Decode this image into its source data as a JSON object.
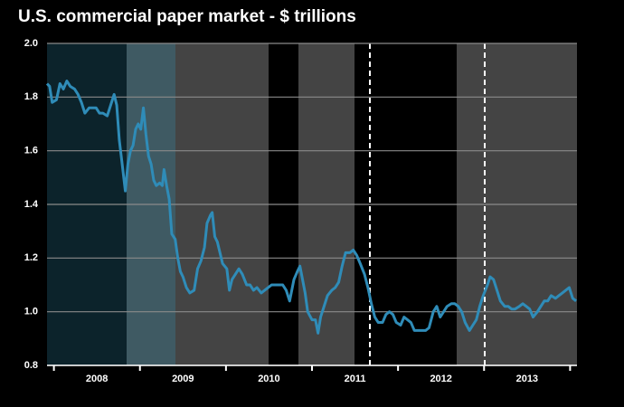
{
  "chart_data": {
    "type": "line",
    "title": "U.S. commercial paper market - $ trillions",
    "color": "#2f8cb8",
    "grid": true,
    "xlim": [
      2007.92,
      2014.08
    ],
    "xticks": [
      2008,
      2009,
      2010,
      2011,
      2012,
      2013,
      2014
    ],
    "year_labels": [
      2008,
      2009,
      2010,
      2011,
      2012,
      2013
    ],
    "ylim": [
      0.8,
      2.0
    ],
    "yticks": [
      0.8,
      {
        "value": 1,
        "label": "1.0"
      },
      1.2,
      1.4,
      1.6,
      1.8,
      {
        "value": 2,
        "label": "2.0"
      }
    ],
    "x": [
      2007.92,
      2007.95,
      2007.98,
      2008.03,
      2008.07,
      2008.11,
      2008.15,
      2008.19,
      2008.24,
      2008.28,
      2008.32,
      2008.36,
      2008.41,
      2008.45,
      2008.49,
      2008.53,
      2008.57,
      2008.62,
      2008.66,
      2008.7,
      2008.73,
      2008.76,
      2008.79,
      2008.83,
      2008.86,
      2008.89,
      2008.92,
      2008.95,
      2008.98,
      2009.01,
      2009.04,
      2009.07,
      2009.1,
      2009.13,
      2009.16,
      2009.19,
      2009.23,
      2009.26,
      2009.28,
      2009.31,
      2009.34,
      2009.37,
      2009.41,
      2009.44,
      2009.47,
      2009.5,
      2009.54,
      2009.58,
      2009.63,
      2009.67,
      2009.71,
      2009.75,
      2009.78,
      2009.82,
      2009.84,
      2009.87,
      2009.9,
      2009.93,
      2009.96,
      2010.01,
      2010.04,
      2010.07,
      2010.11,
      2010.15,
      2010.19,
      2010.24,
      2010.28,
      2010.32,
      2010.36,
      2010.41,
      2010.45,
      2010.49,
      2010.53,
      2010.57,
      2010.62,
      2010.66,
      2010.7,
      2010.74,
      2010.79,
      2010.83,
      2010.86,
      2010.89,
      2010.92,
      2010.95,
      2011.0,
      2011.04,
      2011.07,
      2011.1,
      2011.14,
      2011.18,
      2011.23,
      2011.27,
      2011.31,
      2011.35,
      2011.39,
      2011.44,
      2011.48,
      2011.52,
      2011.56,
      2011.61,
      2011.65,
      2011.69,
      2011.73,
      2011.77,
      2011.82,
      2011.86,
      2011.9,
      2011.94,
      2011.98,
      2012.03,
      2012.07,
      2012.11,
      2012.15,
      2012.19,
      2012.24,
      2012.28,
      2012.32,
      2012.36,
      2012.41,
      2012.45,
      2012.49,
      2012.53,
      2012.57,
      2012.62,
      2012.66,
      2012.7,
      2012.74,
      2012.78,
      2012.83,
      2012.87,
      2012.91,
      2012.95,
      2012.99,
      2013.04,
      2013.07,
      2013.11,
      2013.15,
      2013.19,
      2013.24,
      2013.28,
      2013.32,
      2013.36,
      2013.41,
      2013.45,
      2013.49,
      2013.53,
      2013.57,
      2013.62,
      2013.66,
      2013.7,
      2013.74,
      2013.78,
      2013.83,
      2013.87,
      2013.91,
      2013.95,
      2013.99,
      2014.03,
      2014.07
    ],
    "values": [
      1.85,
      1.84,
      1.78,
      1.79,
      1.85,
      1.83,
      1.86,
      1.84,
      1.83,
      1.81,
      1.78,
      1.74,
      1.76,
      1.76,
      1.76,
      1.74,
      1.74,
      1.73,
      1.77,
      1.81,
      1.77,
      1.64,
      1.56,
      1.45,
      1.55,
      1.6,
      1.62,
      1.68,
      1.7,
      1.68,
      1.76,
      1.66,
      1.58,
      1.55,
      1.49,
      1.47,
      1.48,
      1.47,
      1.53,
      1.47,
      1.42,
      1.29,
      1.27,
      1.2,
      1.15,
      1.13,
      1.09,
      1.07,
      1.08,
      1.16,
      1.19,
      1.24,
      1.33,
      1.36,
      1.37,
      1.28,
      1.26,
      1.22,
      1.18,
      1.16,
      1.08,
      1.12,
      1.14,
      1.16,
      1.14,
      1.1,
      1.1,
      1.08,
      1.09,
      1.07,
      1.08,
      1.09,
      1.1,
      1.1,
      1.1,
      1.1,
      1.08,
      1.04,
      1.12,
      1.15,
      1.17,
      1.12,
      1.07,
      1.0,
      0.97,
      0.97,
      0.92,
      0.98,
      1.02,
      1.06,
      1.08,
      1.09,
      1.11,
      1.17,
      1.22,
      1.22,
      1.23,
      1.21,
      1.18,
      1.14,
      1.09,
      1.03,
      0.98,
      0.96,
      0.96,
      0.99,
      1.0,
      0.99,
      0.96,
      0.95,
      0.98,
      0.97,
      0.96,
      0.93,
      0.93,
      0.93,
      0.93,
      0.94,
      1.0,
      1.02,
      0.98,
      1.0,
      1.02,
      1.03,
      1.03,
      1.02,
      1.0,
      0.96,
      0.93,
      0.95,
      0.97,
      1.02,
      1.06,
      1.1,
      1.13,
      1.12,
      1.08,
      1.04,
      1.02,
      1.02,
      1.01,
      1.01,
      1.02,
      1.03,
      1.02,
      1.01,
      0.98,
      1.0,
      1.02,
      1.04,
      1.04,
      1.06,
      1.05,
      1.06,
      1.07,
      1.08,
      1.09,
      1.05,
      1.04
    ]
  }
}
